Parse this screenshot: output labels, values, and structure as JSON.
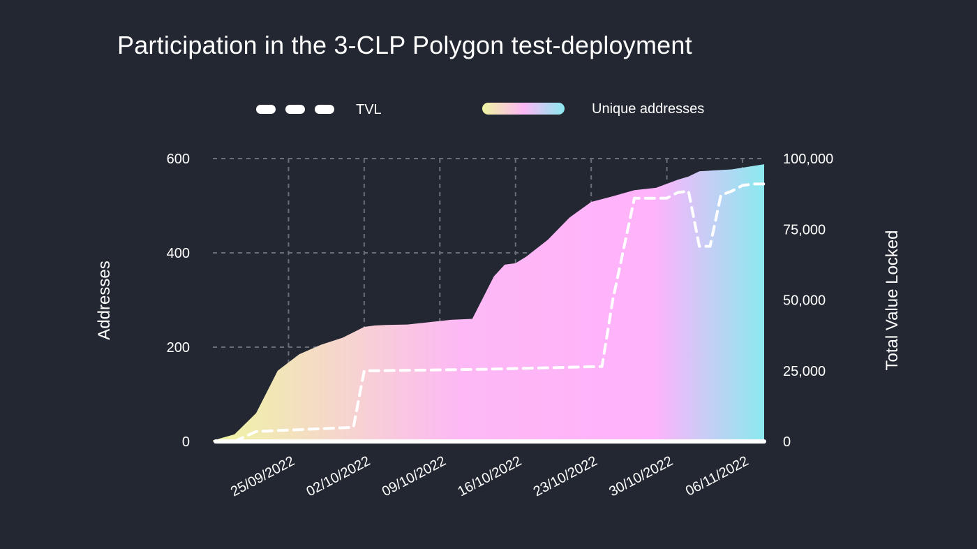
{
  "title": "Participation in the 3-CLP Polygon test-deployment",
  "colors": {
    "background": "#232731",
    "grid": "#6a6e78",
    "tvl_line": "#ffffff",
    "gradient": [
      "#eef5a2",
      "#fdb8f5",
      "#ffb3fb",
      "#8be9ef"
    ]
  },
  "chart_data": {
    "type": "area",
    "legend": {
      "tvl": "TVL",
      "addresses": "Unique addresses",
      "placement": "top-center"
    },
    "ylabel_left": "Addresses",
    "ylabel_right": "Total Value Locked",
    "y_left_ticks": [
      "0",
      "200",
      "400",
      "600"
    ],
    "y_left_range": [
      0,
      600
    ],
    "y_right_ticks": [
      "0",
      "25,000",
      "50,000",
      "75,000",
      "100,000"
    ],
    "y_right_range": [
      0,
      100000
    ],
    "x_ticks": [
      "25/09/2022",
      "02/10/2022",
      "09/10/2022",
      "16/10/2022",
      "23/10/2022",
      "30/10/2022",
      "06/11/2022"
    ],
    "x_range": [
      "2022-09-18",
      "2022-11-08"
    ],
    "grid": true,
    "series": [
      {
        "name": "Unique addresses",
        "axis": "left",
        "dates": [
          "2022-09-18",
          "2022-09-20",
          "2022-09-22",
          "2022-09-24",
          "2022-09-26",
          "2022-09-28",
          "2022-09-30",
          "2022-10-02",
          "2022-10-03",
          "2022-10-04",
          "2022-10-06",
          "2022-10-10",
          "2022-10-12",
          "2022-10-14",
          "2022-10-15",
          "2022-10-16",
          "2022-10-17",
          "2022-10-19",
          "2022-10-21",
          "2022-10-23",
          "2022-10-25",
          "2022-10-27",
          "2022-10-29",
          "2022-10-31",
          "2022-11-01",
          "2022-11-02",
          "2022-11-05",
          "2022-11-08"
        ],
        "values": [
          2,
          15,
          60,
          150,
          185,
          205,
          220,
          243,
          246,
          247,
          248,
          258,
          260,
          350,
          375,
          378,
          392,
          428,
          475,
          508,
          520,
          533,
          538,
          555,
          562,
          573,
          577,
          588
        ]
      },
      {
        "name": "TVL",
        "axis": "right",
        "dates": [
          "2022-09-20",
          "2022-09-22",
          "2022-09-28",
          "2022-10-01",
          "2022-10-02",
          "2022-10-03",
          "2022-10-13",
          "2022-10-24",
          "2022-10-25",
          "2022-10-27",
          "2022-10-30",
          "2022-10-31",
          "2022-11-01",
          "2022-11-02",
          "2022-11-03",
          "2022-11-04",
          "2022-11-05",
          "2022-11-06",
          "2022-11-07",
          "2022-11-08"
        ],
        "values": [
          0,
          3500,
          4500,
          5000,
          25000,
          25000,
          25500,
          26500,
          50000,
          86000,
          86000,
          88000,
          88500,
          69000,
          69000,
          87000,
          88500,
          90500,
          91000,
          91000
        ]
      }
    ]
  }
}
